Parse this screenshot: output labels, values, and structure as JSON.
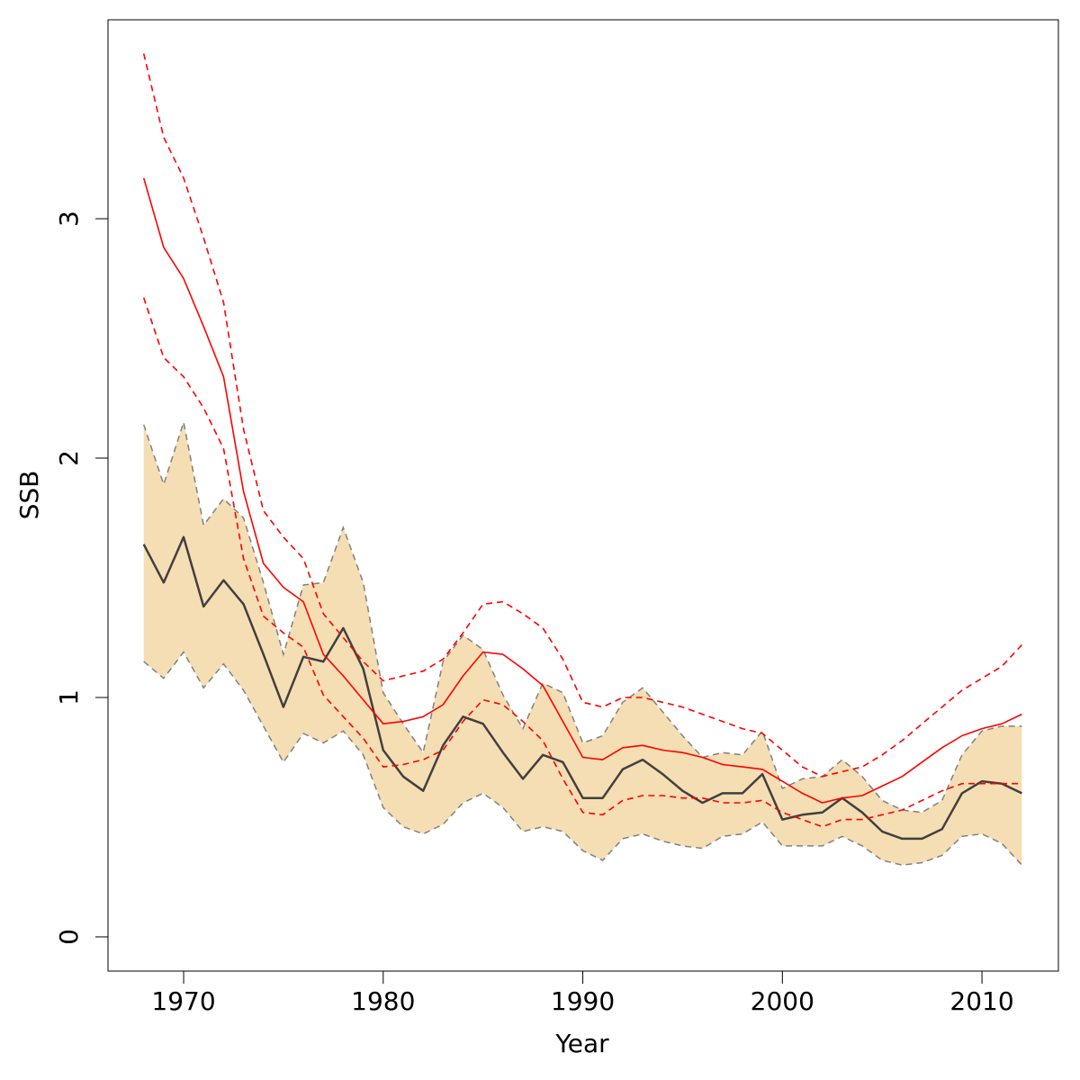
{
  "chart_data": {
    "type": "line",
    "xlabel": "Year",
    "ylabel": "SSB",
    "x": [
      1968,
      1969,
      1970,
      1971,
      1972,
      1973,
      1974,
      1975,
      1976,
      1977,
      1978,
      1979,
      1980,
      1981,
      1982,
      1983,
      1984,
      1985,
      1986,
      1987,
      1988,
      1989,
      1990,
      1991,
      1992,
      1993,
      1994,
      1995,
      1996,
      1997,
      1998,
      1999,
      2000,
      2001,
      2002,
      2003,
      2004,
      2005,
      2006,
      2007,
      2008,
      2009,
      2010,
      2011,
      2012
    ],
    "xlim": [
      1966.21,
      2013.83
    ],
    "xticks": [
      1970,
      1980,
      1990,
      2000,
      2010
    ],
    "ylim": [
      -0.143,
      3.831
    ],
    "yticks": [
      0,
      1,
      2,
      3
    ],
    "band": {
      "color": "#f5deb3",
      "edge_color": "#808080",
      "upper": [
        2.14,
        1.89,
        2.15,
        1.72,
        1.83,
        1.75,
        1.48,
        1.18,
        1.47,
        1.48,
        1.71,
        1.48,
        1.02,
        0.89,
        0.77,
        1.15,
        1.26,
        1.2,
        1.01,
        0.87,
        1.06,
        1.02,
        0.81,
        0.84,
        0.98,
        1.04,
        0.94,
        0.84,
        0.75,
        0.77,
        0.76,
        0.86,
        0.62,
        0.66,
        0.67,
        0.74,
        0.67,
        0.57,
        0.53,
        0.52,
        0.57,
        0.76,
        0.86,
        0.88,
        0.88
      ],
      "lower": [
        1.15,
        1.08,
        1.19,
        1.04,
        1.14,
        1.03,
        0.88,
        0.73,
        0.85,
        0.81,
        0.86,
        0.76,
        0.54,
        0.46,
        0.43,
        0.47,
        0.56,
        0.6,
        0.54,
        0.44,
        0.46,
        0.44,
        0.36,
        0.32,
        0.41,
        0.43,
        0.4,
        0.38,
        0.37,
        0.42,
        0.43,
        0.48,
        0.38,
        0.38,
        0.38,
        0.42,
        0.38,
        0.32,
        0.3,
        0.31,
        0.34,
        0.42,
        0.43,
        0.39,
        0.3
      ]
    },
    "series": [
      {
        "color": "#404040",
        "dashed": false,
        "width": 2.5,
        "values": [
          1.64,
          1.48,
          1.67,
          1.38,
          1.49,
          1.39,
          1.18,
          0.96,
          1.17,
          1.15,
          1.29,
          1.12,
          0.78,
          0.67,
          0.61,
          0.8,
          0.92,
          0.89,
          0.77,
          0.66,
          0.76,
          0.73,
          0.58,
          0.58,
          0.7,
          0.74,
          0.68,
          0.61,
          0.56,
          0.6,
          0.6,
          0.68,
          0.49,
          0.51,
          0.52,
          0.58,
          0.52,
          0.44,
          0.41,
          0.41,
          0.45,
          0.6,
          0.65,
          0.64,
          0.6
        ]
      },
      {
        "color": "#ff0000",
        "dashed": false,
        "width": 1.6,
        "values": [
          3.17,
          2.88,
          2.75,
          2.55,
          2.34,
          1.86,
          1.56,
          1.46,
          1.4,
          1.18,
          1.09,
          0.99,
          0.89,
          0.9,
          0.92,
          0.97,
          1.09,
          1.19,
          1.18,
          1.12,
          1.05,
          0.9,
          0.75,
          0.74,
          0.79,
          0.8,
          0.78,
          0.77,
          0.75,
          0.72,
          0.71,
          0.7,
          0.65,
          0.6,
          0.56,
          0.58,
          0.59,
          0.63,
          0.67,
          0.73,
          0.79,
          0.84,
          0.87,
          0.89,
          0.93
        ]
      },
      {
        "color": "#ff0000",
        "dashed": true,
        "width": 1.6,
        "values": [
          3.69,
          3.34,
          3.17,
          2.92,
          2.65,
          2.12,
          1.78,
          1.67,
          1.58,
          1.35,
          1.25,
          1.15,
          1.07,
          1.09,
          1.11,
          1.16,
          1.27,
          1.39,
          1.4,
          1.35,
          1.29,
          1.16,
          0.98,
          0.96,
          1.0,
          1.0,
          0.98,
          0.96,
          0.93,
          0.9,
          0.87,
          0.85,
          0.78,
          0.71,
          0.67,
          0.69,
          0.71,
          0.76,
          0.82,
          0.89,
          0.96,
          1.03,
          1.08,
          1.13,
          1.22
        ]
      },
      {
        "color": "#ff0000",
        "dashed": true,
        "width": 1.6,
        "values": [
          2.67,
          2.42,
          2.34,
          2.21,
          2.04,
          1.58,
          1.34,
          1.27,
          1.21,
          1.01,
          0.92,
          0.83,
          0.71,
          0.72,
          0.74,
          0.78,
          0.9,
          0.99,
          0.97,
          0.9,
          0.82,
          0.66,
          0.52,
          0.51,
          0.57,
          0.59,
          0.59,
          0.58,
          0.58,
          0.56,
          0.56,
          0.57,
          0.52,
          0.49,
          0.46,
          0.49,
          0.49,
          0.51,
          0.53,
          0.57,
          0.61,
          0.64,
          0.64,
          0.64,
          0.64
        ]
      }
    ]
  }
}
